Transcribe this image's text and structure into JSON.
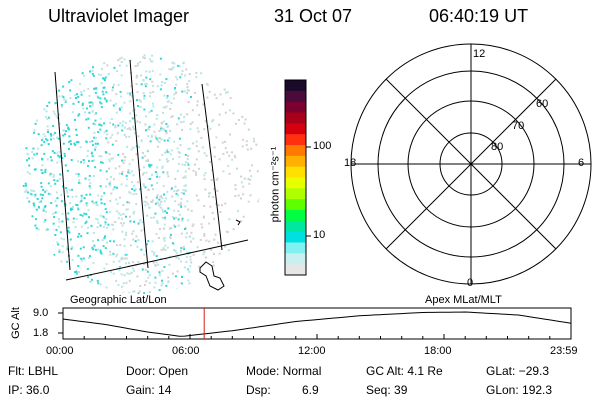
{
  "header": {
    "title": "Ultraviolet Imager",
    "date": "31 Oct 07",
    "time": "06:40:19 UT"
  },
  "colorbar": {
    "unit_label": "photon cm⁻²s⁻¹",
    "ticks": [
      "100",
      "10"
    ],
    "colors": [
      "#1a0a2a",
      "#4a0a3a",
      "#7a0030",
      "#a80018",
      "#d40010",
      "#ff3010",
      "#ff7a00",
      "#ffb000",
      "#ffe000",
      "#e8ff00",
      "#b0ff00",
      "#60ff00",
      "#00ff40",
      "#00e8a0",
      "#00e0e0",
      "#80f0f0",
      "#c8f0f0",
      "#e6e6e6"
    ]
  },
  "polar_plot": {
    "mlt_labels": {
      "top": "12",
      "left": "18",
      "right": "6",
      "bottom": "0"
    },
    "lat_labels": [
      "60",
      "70",
      "80"
    ]
  },
  "timeline": {
    "left_label": "Geographic Lat/Lon",
    "right_label": "Apex  MLat/MLT",
    "axis_title": "GC Alt",
    "y_ticks": [
      "9.0",
      "1.8"
    ],
    "x_ticks": [
      "00:00",
      "06:00",
      "12:00",
      "18:00",
      "23:59"
    ],
    "marker_time_hours": 6.672
  },
  "info": {
    "row1": {
      "flt": "Flt: LBHL",
      "door": "Door: Open",
      "mode": "Mode: Normal",
      "gcalt": "GC Alt: 4.1 Re",
      "glat": "GLat: −29.3"
    },
    "row2": {
      "ip": "IP: 36.0",
      "gain": "Gain: 14",
      "dsp_label": "Dsp:",
      "dsp_value": "6.9",
      "seq": "Seq: 39",
      "glon": "GLon: 192.3"
    }
  },
  "colors": {
    "emission_cyan": "#33d6d6",
    "emission_light": "#b8e6e6",
    "emission_grey": "#d2d2d2",
    "marker": "#d02020"
  }
}
